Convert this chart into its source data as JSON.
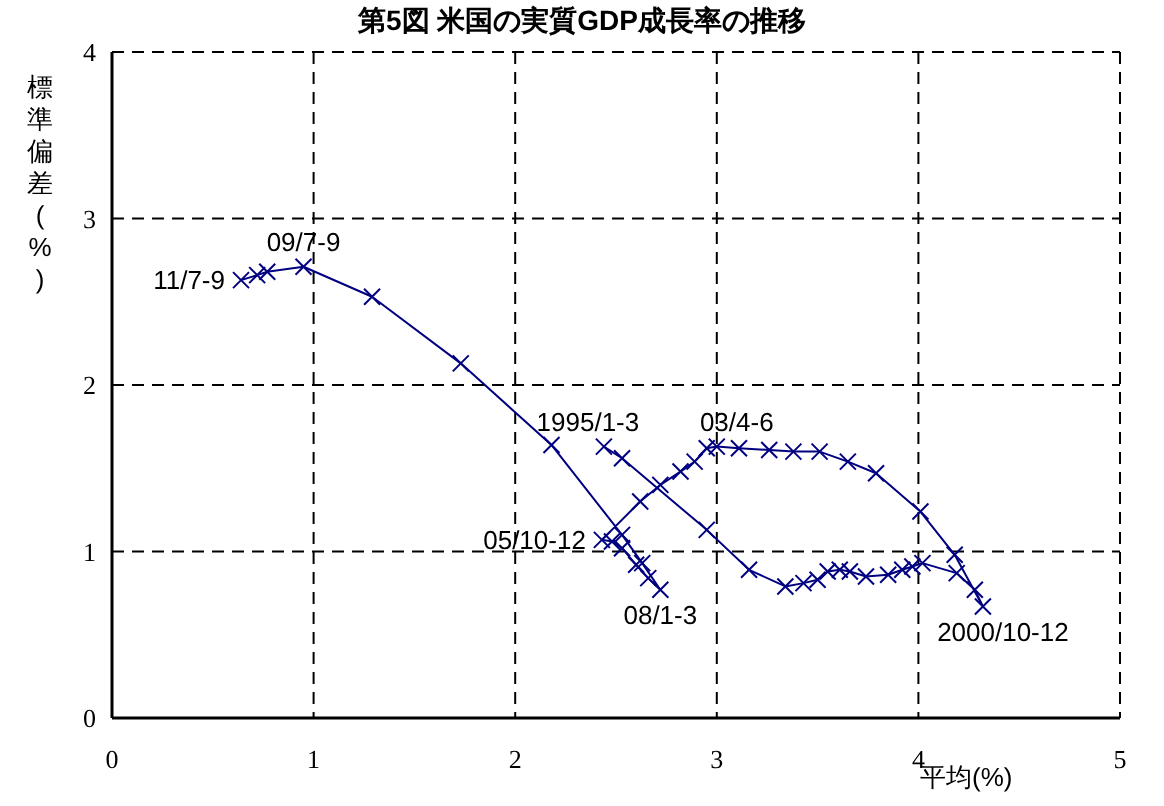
{
  "chart_data": {
    "type": "line",
    "title": "第5図 米国の実質GDP成長率の推移",
    "xlabel": "平均(%)",
    "ylabel": "標準偏差(%)",
    "xlim": [
      0,
      5
    ],
    "xticks": [
      0,
      1,
      2,
      3,
      4,
      5
    ],
    "ylim": [
      0,
      4
    ],
    "yticks": [
      0,
      1,
      2,
      3,
      4
    ],
    "grid": true,
    "marker": "cross",
    "line_style": "solid",
    "x": [
      2.44,
      2.53,
      2.95,
      3.16,
      3.34,
      3.43,
      3.5,
      3.55,
      3.61,
      3.66,
      3.74,
      3.85,
      3.92,
      3.97,
      4.02,
      4.19,
      4.28,
      4.32,
      4.18,
      4.01,
      3.79,
      3.65,
      3.51,
      3.38,
      3.26,
      3.11,
      3.0,
      2.95,
      2.89,
      2.82,
      2.72,
      2.62,
      2.43,
      2.48,
      2.53,
      2.6,
      2.66,
      2.72,
      2.63,
      2.53,
      2.18,
      1.73,
      1.29,
      0.95,
      0.77,
      0.72,
      0.64
    ],
    "series": [
      {
        "color": "#000080",
        "values": [
          1.63,
          1.56,
          1.13,
          0.89,
          0.79,
          0.81,
          0.83,
          0.88,
          0.89,
          0.88,
          0.85,
          0.86,
          0.89,
          0.91,
          0.93,
          0.87,
          0.77,
          0.67,
          0.98,
          1.24,
          1.47,
          1.54,
          1.6,
          1.6,
          1.61,
          1.62,
          1.63,
          1.62,
          1.54,
          1.48,
          1.4,
          1.3,
          1.07,
          1.06,
          1.02,
          0.92,
          0.84,
          0.77,
          0.93,
          1.1,
          1.64,
          2.13,
          2.53,
          2.71,
          2.68,
          2.66,
          2.63
        ]
      }
    ],
    "annotations": [
      {
        "text": "1995/1-3",
        "x": 2.44,
        "y": 1.63
      },
      {
        "text": "03/4-6",
        "x": 3.0,
        "y": 1.63
      },
      {
        "text": "05/10-12",
        "x": 2.43,
        "y": 1.07
      },
      {
        "text": "08/1-3",
        "x": 2.72,
        "y": 0.77
      },
      {
        "text": "09/7-9",
        "x": 0.95,
        "y": 2.71
      },
      {
        "text": "11/7-9",
        "x": 0.64,
        "y": 2.63
      },
      {
        "text": "2000/10-12",
        "x": 4.32,
        "y": 0.67
      }
    ]
  }
}
